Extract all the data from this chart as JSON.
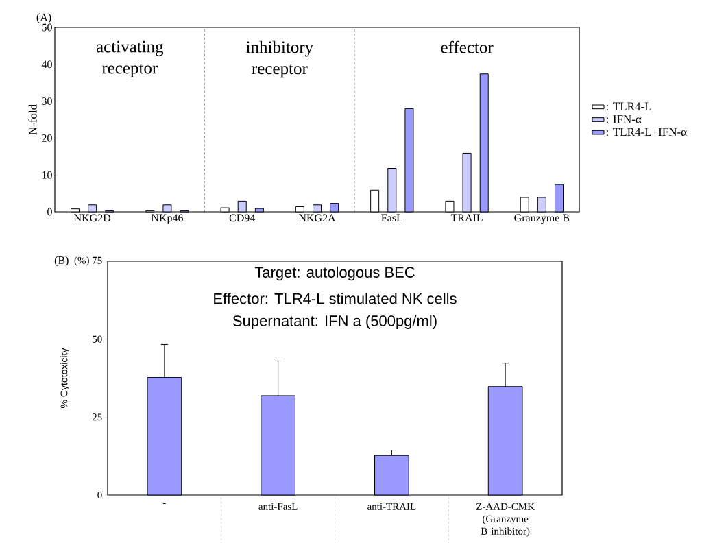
{
  "chart_data": [
    {
      "type": "bar",
      "ylabel": "N-fold",
      "categories": [
        "NKG2D",
        "NKp46",
        "CD94",
        "NKG2A",
        "FasL",
        "TRAIL",
        "Granzyme B"
      ],
      "series": [
        {
          "name": ": TLR4-L",
          "color": "#ffffff",
          "values": [
            0.8,
            0.3,
            1.1,
            1.4,
            5.9,
            2.9,
            3.9
          ]
        },
        {
          "name": ": IFN-α",
          "color": "#ccccff",
          "values": [
            1.9,
            1.9,
            2.9,
            1.9,
            11.8,
            15.9,
            3.9
          ]
        },
        {
          "name": ": TLR4-L+IFN-α",
          "color": "#9999ff",
          "values": [
            0.3,
            0.3,
            0.9,
            2.3,
            28.0,
            37.4,
            7.4
          ]
        }
      ],
      "ylim": [
        0,
        50
      ],
      "yticks": [
        0,
        10,
        20,
        30,
        40,
        50
      ],
      "legend": "right",
      "annotations": [
        "(A)",
        "activating receptor",
        "inhibitory receptor",
        "effector"
      ]
    },
    {
      "type": "bar",
      "title": "Target: autologous BEC",
      "ylabel": "% Cytotoxicity",
      "categories": [
        "-",
        "anti-FasL",
        "anti-TRAIL",
        "Z-AAD-CMK (Granzyme B inhibitor)"
      ],
      "values": [
        37.7,
        31.9,
        12.7,
        34.8
      ],
      "color": "#9999ff",
      "errors": [
        [
          37.7,
          48.3
        ],
        [
          31.9,
          43.0
        ],
        [
          12.7,
          14.4
        ],
        [
          34.8,
          42.3
        ]
      ],
      "ylim": [
        0,
        75
      ],
      "yticks": [
        0,
        25,
        50,
        {
          "value": 75,
          "label": "(%) 75"
        }
      ],
      "annotations": [
        "(B)",
        "Effector: TLR4-L stimulated NK cells",
        "Supernatant: IFN a   (500pg/ml)"
      ]
    }
  ]
}
